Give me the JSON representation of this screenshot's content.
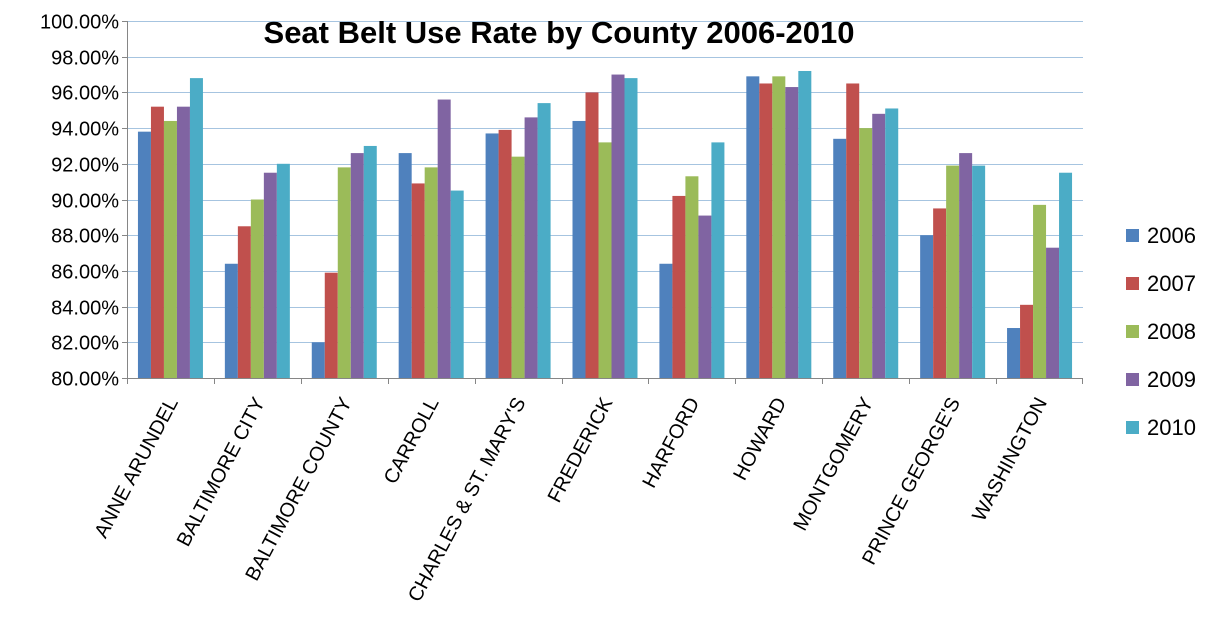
{
  "chart_data": {
    "type": "bar",
    "title": "Seat Belt Use Rate by County 2006-2010",
    "xlabel": "",
    "ylabel": "",
    "ylim": [
      0.8,
      1.0
    ],
    "yticks": [
      0.8,
      0.82,
      0.84,
      0.86,
      0.88,
      0.9,
      0.92,
      0.94,
      0.96,
      0.98,
      1.0
    ],
    "ytick_labels": [
      "80.00%",
      "82.00%",
      "84.00%",
      "86.00%",
      "88.00%",
      "90.00%",
      "92.00%",
      "94.00%",
      "96.00%",
      "98.00%",
      "100.00%"
    ],
    "grid": "horizontal",
    "legend_position": "right",
    "categories": [
      "ANNE ARUNDEL",
      "BALTIMORE CITY",
      "BALTIMORE COUNTY",
      "CARROLL",
      "CHARLES & ST. MARY'S",
      "FREDERICK",
      "HARFORD",
      "HOWARD",
      "MONTGOMERY",
      "PRINCE GEORGE'S",
      "WASHINGTON"
    ],
    "series": [
      {
        "name": "2006",
        "color": "#4f81bd",
        "values": [
          0.938,
          0.864,
          0.82,
          0.926,
          0.937,
          0.944,
          0.864,
          0.969,
          0.934,
          0.88,
          0.828
        ]
      },
      {
        "name": "2007",
        "color": "#c0504d",
        "values": [
          0.952,
          0.885,
          0.859,
          0.909,
          0.939,
          0.96,
          0.902,
          0.965,
          0.965,
          0.895,
          0.841
        ]
      },
      {
        "name": "2008",
        "color": "#9bbb59",
        "values": [
          0.944,
          0.9,
          0.918,
          0.918,
          0.924,
          0.932,
          0.913,
          0.969,
          0.94,
          0.919,
          0.897
        ]
      },
      {
        "name": "2009",
        "color": "#8064a2",
        "values": [
          0.952,
          0.915,
          0.926,
          0.956,
          0.946,
          0.97,
          0.891,
          0.963,
          0.948,
          0.926,
          0.873
        ]
      },
      {
        "name": "2010",
        "color": "#4bacc6",
        "values": [
          0.968,
          0.92,
          0.93,
          0.905,
          0.954,
          0.968,
          0.932,
          0.972,
          0.951,
          0.919,
          0.915
        ]
      }
    ]
  }
}
